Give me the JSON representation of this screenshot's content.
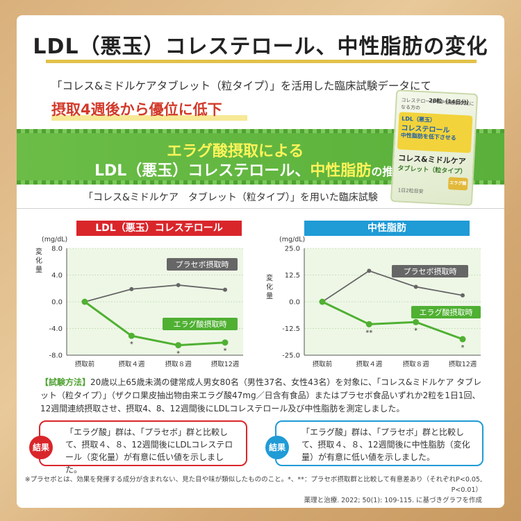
{
  "title": "LDL（悪玉）コレステロール、中性脂肪の変化",
  "intro": "「コレス&ミドルケアタブレット（粒タイプ）」を活用した臨床試験データにて",
  "highlight": "摂取4週後から優位に低下",
  "banner": {
    "line1": "エラグ酸摂取による",
    "line2_a": "LDL（悪玉）コレステロール、",
    "line2_b": "中性脂肪",
    "line2_c": "の推移"
  },
  "product": {
    "head": "コレステロールや中性脂肪が気になる方の",
    "count": "28粒（14日分）",
    "band1": "LDL（悪玉）",
    "band2": "コレステロール",
    "band3": "中性脂肪を低下させる",
    "name": "コレス&ミドルケア",
    "sub": "タブレット（粒タイプ）",
    "seal": "エラグ酸",
    "foot": "1日2粒目安"
  },
  "trial_title": "「コレス&ミドルケア　タブレット（粒タイプ）」を用いた臨床試験",
  "chart_data": [
    {
      "type": "line",
      "title": "LDL（悪玉）コレステロール",
      "ylabel": "変化量",
      "unit": "(mg/dL)",
      "categories": [
        "摂取前",
        "摂取４週",
        "摂取８週",
        "摂取12週"
      ],
      "ylim": [
        -8.0,
        8.0
      ],
      "yticks": [
        "8.0",
        "4.0",
        "0.0",
        "-4.0",
        "-8.0"
      ],
      "ytick_values": [
        8,
        4,
        0,
        -4,
        -8
      ],
      "series": [
        {
          "name": "プラセボ摂取時",
          "values": [
            0,
            1.9,
            2.5,
            1.8
          ],
          "color": "#666666"
        },
        {
          "name": "エラグ酸摂取時",
          "values": [
            0,
            -5.1,
            -6.5,
            -6.1
          ],
          "color": "#4fb032"
        }
      ],
      "annotations": [
        "*",
        "*",
        "*"
      ]
    },
    {
      "type": "line",
      "title": "中性脂肪",
      "ylabel": "変化量",
      "unit": "(mg/dL)",
      "categories": [
        "摂取前",
        "摂取４週",
        "摂取８週",
        "摂取12週"
      ],
      "ylim": [
        -25.0,
        25.0
      ],
      "yticks": [
        "25.0",
        "12.5",
        "0.0",
        "-12.5",
        "-25.0"
      ],
      "ytick_values": [
        25,
        12.5,
        0,
        -12.5,
        -25
      ],
      "series": [
        {
          "name": "プラセボ摂取時",
          "values": [
            0,
            14.5,
            7.0,
            3.0
          ],
          "color": "#666666"
        },
        {
          "name": "エラグ酸摂取時",
          "values": [
            0,
            -10.5,
            -9.5,
            -17.5
          ],
          "color": "#4fb032"
        }
      ],
      "annotations": [
        "**",
        "*",
        "*"
      ]
    }
  ],
  "method": {
    "lead": "【試験方法】",
    "text": "20歳以上65歳未満の健常成人男女80名（男性37名、女性43名）を対象に、「コレス&ミドルケア タブレット（粒タイプ）」（ザクロ果皮抽出物由来エラグ酸47mg／日含有食品）またはプラセボ食品いずれか2粒を1日1回、12週間連続摂取させ、摂取4、8、12週間後にLDLコレステロール及び中性脂肪を測定しました。"
  },
  "results": [
    {
      "badge": "結果",
      "text": "「エラグ酸」群は、「プラセボ」群と比較して、摂取４、８、12週間後にLDLコレステロール（変化量）が有意に低い値を示しました。"
    },
    {
      "badge": "結果",
      "text": "「エラグ酸」群は、「プラセボ」群と比較して、摂取４、８、12週間後に中性脂肪（変化量）が有意に低い値を示しました。"
    }
  ],
  "footnote1": "※プラセボとは、効果を発揮する成分が含まれない、見た目や味が類似したもののこと。*、**：プラセボ摂取群と比較して有意差あり（それぞれP<0.05, P<0.01）",
  "footnote2": "薬理と治療. 2022; 50(1): 109-115. に基づきグラフを作成",
  "colors": {
    "red": "#d9262b",
    "blue": "#1f9bd6",
    "green": "#4fb032",
    "gray": "#666666"
  }
}
